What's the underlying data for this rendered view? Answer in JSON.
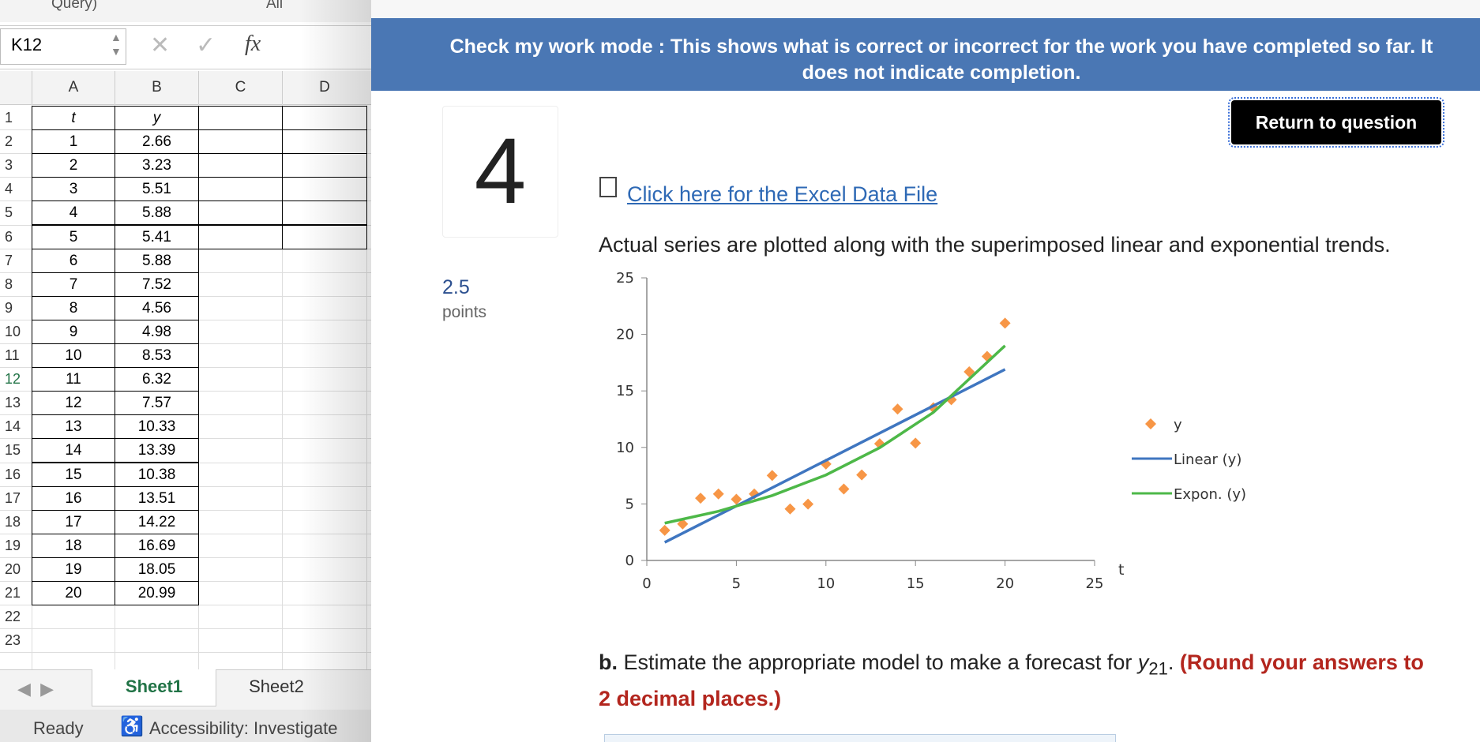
{
  "spreadsheet": {
    "top_labels": [
      "Query)",
      "All"
    ],
    "name_box": "K12",
    "formula_icon": "fx",
    "columns": [
      "A",
      "B",
      "C",
      "D"
    ],
    "row_numbers": [
      1,
      2,
      3,
      4,
      5,
      6,
      7,
      8,
      9,
      10,
      11,
      12,
      13,
      14,
      15,
      16,
      17,
      18,
      19,
      20,
      21,
      22,
      23
    ],
    "cells": [
      [
        "t",
        "y"
      ],
      [
        1,
        2.66
      ],
      [
        2,
        3.23
      ],
      [
        3,
        5.51
      ],
      [
        4,
        5.88
      ],
      [
        5,
        5.41
      ],
      [
        6,
        5.88
      ],
      [
        7,
        7.52
      ],
      [
        8,
        4.56
      ],
      [
        9,
        4.98
      ],
      [
        10,
        8.53
      ],
      [
        11,
        6.32
      ],
      [
        12,
        7.57
      ],
      [
        13,
        10.33
      ],
      [
        14,
        13.39
      ],
      [
        15,
        10.38
      ],
      [
        16,
        13.51
      ],
      [
        17,
        14.22
      ],
      [
        18,
        16.69
      ],
      [
        19,
        18.05
      ],
      [
        20,
        20.99
      ]
    ],
    "tabs": [
      "Sheet1",
      "Sheet2"
    ],
    "status": [
      "Ready",
      "Accessibility: Investigate"
    ]
  },
  "question": {
    "banner": "Check my work mode : This shows what is correct or incorrect for the work you have completed so far. It does not indicate completion.",
    "number": 4,
    "points": 2.5,
    "points_label": "points",
    "return_button": "Return to question",
    "link": "Click here for the Excel Data File",
    "description": "Actual series are plotted along with the superimposed linear and exponential trends.",
    "part_label": "b.",
    "part_text": "Estimate the appropriate model to make a forecast for",
    "part_var": "y",
    "part_sub": "21",
    "part_end": ".",
    "instruction": "(Round your answers to 2 decimal places.)"
  },
  "chart_data": {
    "type": "scatter",
    "x_label": "t",
    "xlim": [
      0,
      25
    ],
    "ylim": [
      0,
      25
    ],
    "xticks": [
      0,
      5,
      10,
      15,
      20,
      25
    ],
    "yticks": [
      0,
      5,
      10,
      15,
      20,
      25
    ],
    "series": [
      {
        "name": "y",
        "color": "#f79646",
        "style": "markers",
        "x": [
          1,
          2,
          3,
          4,
          5,
          6,
          7,
          8,
          9,
          10,
          11,
          12,
          13,
          14,
          15,
          16,
          17,
          18,
          19,
          20
        ],
        "values": [
          2.66,
          3.23,
          5.51,
          5.88,
          5.41,
          5.88,
          7.52,
          4.56,
          4.98,
          8.53,
          6.32,
          7.57,
          10.33,
          13.39,
          10.38,
          13.51,
          14.22,
          16.69,
          18.05,
          20.99
        ]
      },
      {
        "name": "Linear (y)",
        "color": "#3f76c0",
        "style": "line",
        "x": [
          1,
          20
        ],
        "values": [
          1.6,
          16.9
        ]
      },
      {
        "name": "Expon. (y)",
        "color": "#4db848",
        "style": "line",
        "x": [
          1,
          4,
          7,
          10,
          13,
          16,
          20
        ],
        "values": [
          3.3,
          4.35,
          5.74,
          7.56,
          9.97,
          13.1,
          19.0
        ]
      }
    ]
  }
}
